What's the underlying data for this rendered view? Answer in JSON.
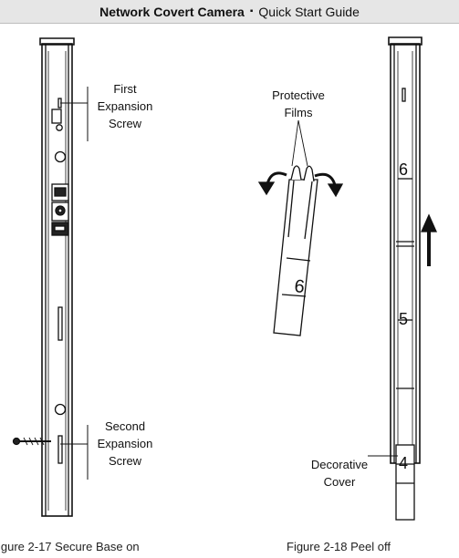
{
  "header": {
    "product": "Network Covert Camera",
    "separator": "▪",
    "guide": "Quick Start Guide"
  },
  "figure_left": {
    "callout_first": [
      "First",
      "Expansion",
      "Screw"
    ],
    "callout_second": [
      "Second",
      "Expansion",
      "Screw"
    ],
    "caption": "igure 2-17 Secure Base on"
  },
  "figure_right": {
    "callout_films": [
      "Protective",
      "Films"
    ],
    "callout_cover": [
      "Decorative",
      "Cover"
    ],
    "film_number": "6",
    "cover_numbers": [
      "6",
      "5",
      "4"
    ],
    "caption": "Figure 2-18 Peel off"
  }
}
